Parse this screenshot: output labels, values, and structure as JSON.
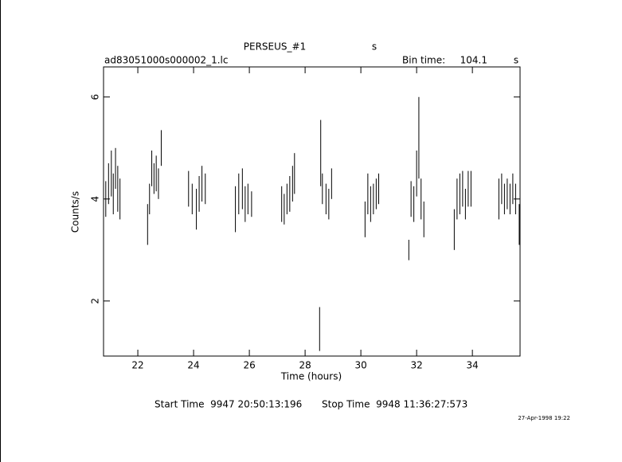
{
  "chart_data": {
    "type": "errorbar",
    "title": "PERSEUS_#1",
    "title_unit": "s",
    "subtitle": "ad83051000s000002_1.lc",
    "bin_label": "Bin time:",
    "bin_value": "104.1",
    "bin_unit": "s",
    "x_label": "Time (hours)",
    "y_label": "Counts/s",
    "start_time": "Start Time  9947 20:50:13:196",
    "stop_time": "Stop Time  9948 11:36:27:573",
    "date": "27-Apr-1998 19:22",
    "xlim": [
      20.77,
      35.71
    ],
    "ylim": [
      0.92,
      6.59
    ],
    "xticks": [
      22,
      24,
      26,
      28,
      30,
      32,
      34
    ],
    "yticks": [
      2,
      4,
      6
    ],
    "color": "#000000",
    "x": [
      20.85,
      20.95,
      21.05,
      21.12,
      21.2,
      21.28,
      21.36,
      22.35,
      22.42,
      22.5,
      22.58,
      22.66,
      22.74,
      22.84,
      23.82,
      23.95,
      24.1,
      24.2,
      24.3,
      24.42,
      25.5,
      25.62,
      25.75,
      25.85,
      25.95,
      26.08,
      27.16,
      27.25,
      27.35,
      27.45,
      27.55,
      27.62,
      28.52,
      28.56,
      28.62,
      28.75,
      28.85,
      28.95,
      30.15,
      30.25,
      30.35,
      30.45,
      30.55,
      30.64,
      31.72,
      31.8,
      31.9,
      32.0,
      32.08,
      32.16,
      32.26,
      33.35,
      33.45,
      33.55,
      33.65,
      33.75,
      33.85,
      33.95,
      34.95,
      35.05,
      35.15,
      35.25,
      35.35,
      35.45,
      35.55,
      35.68
    ],
    "values": [
      4.0,
      4.3,
      4.5,
      4.1,
      4.6,
      4.2,
      4.0,
      3.5,
      4.0,
      4.6,
      4.4,
      4.5,
      4.3,
      5.0,
      4.2,
      4.0,
      3.8,
      4.1,
      4.3,
      4.2,
      3.8,
      4.1,
      4.2,
      3.9,
      4.0,
      3.9,
      3.9,
      3.8,
      4.0,
      4.1,
      4.3,
      4.5,
      1.45,
      4.9,
      4.2,
      4.0,
      3.9,
      4.3,
      3.6,
      4.1,
      3.9,
      4.0,
      4.1,
      4.2,
      3.0,
      4.0,
      3.9,
      4.5,
      5.2,
      4.0,
      3.6,
      3.4,
      4.0,
      4.1,
      4.2,
      3.9,
      4.2,
      4.2,
      4.0,
      4.2,
      4.0,
      4.1,
      4.0,
      4.2,
      4.0,
      3.5
    ],
    "errors": [
      0.35,
      0.4,
      0.45,
      0.4,
      0.4,
      0.45,
      0.4,
      0.4,
      0.3,
      0.35,
      0.3,
      0.35,
      0.3,
      0.35,
      0.35,
      0.3,
      0.4,
      0.35,
      0.35,
      0.3,
      0.45,
      0.4,
      0.4,
      0.35,
      0.3,
      0.25,
      0.35,
      0.3,
      0.3,
      0.35,
      0.35,
      0.4,
      0.43,
      0.65,
      0.3,
      0.3,
      0.3,
      0.3,
      0.35,
      0.4,
      0.35,
      0.3,
      0.3,
      0.3,
      0.2,
      0.35,
      0.35,
      0.45,
      0.8,
      0.4,
      0.35,
      0.4,
      0.4,
      0.4,
      0.35,
      0.3,
      0.35,
      0.35,
      0.4,
      0.3,
      0.3,
      0.3,
      0.3,
      0.3,
      0.3,
      0.4
    ]
  }
}
